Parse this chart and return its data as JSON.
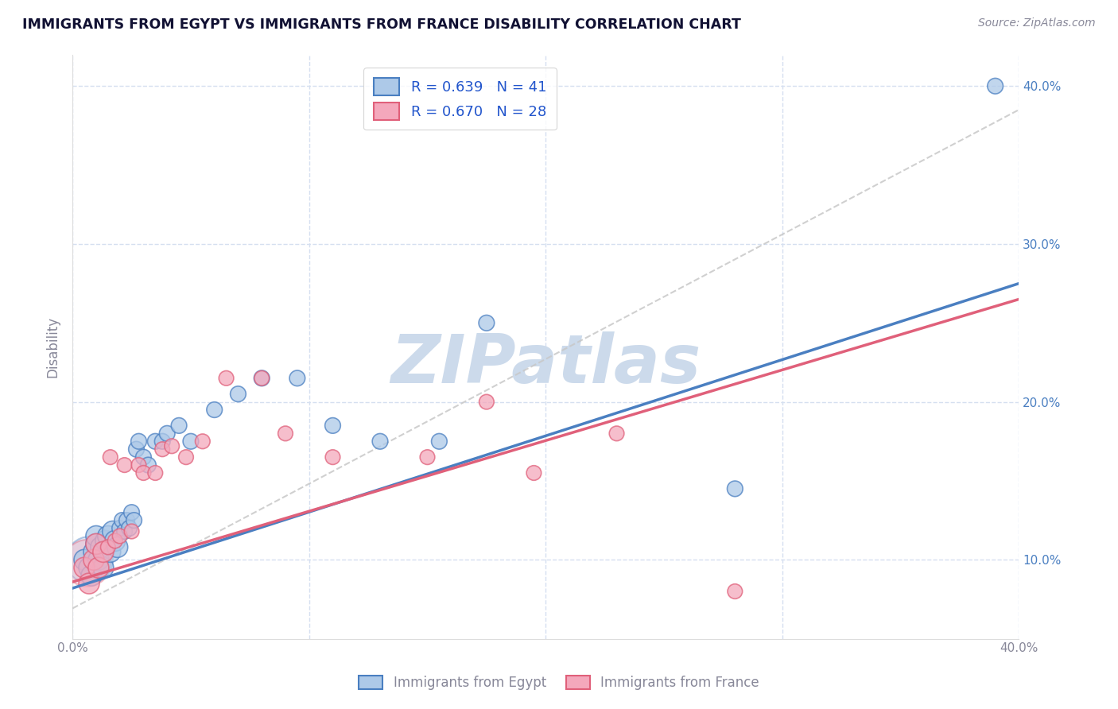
{
  "title": "IMMIGRANTS FROM EGYPT VS IMMIGRANTS FROM FRANCE DISABILITY CORRELATION CHART",
  "source": "Source: ZipAtlas.com",
  "ylabel": "Disability",
  "legend_egypt": "R = 0.639   N = 41",
  "legend_france": "R = 0.670   N = 28",
  "xlim": [
    0.0,
    0.4
  ],
  "ylim": [
    0.05,
    0.42
  ],
  "xticks": [
    0.0,
    0.1,
    0.2,
    0.3,
    0.4
  ],
  "yticks": [
    0.1,
    0.2,
    0.3,
    0.4
  ],
  "color_egypt": "#adc9e8",
  "color_france": "#f4a8bc",
  "color_egypt_line": "#4a7fc1",
  "color_france_line": "#e0607a",
  "color_dashed": "#c8c8c8",
  "watermark": "ZIPatlas",
  "watermark_color": "#ccdaeb",
  "egypt_x": [
    0.005,
    0.007,
    0.008,
    0.009,
    0.01,
    0.01,
    0.011,
    0.012,
    0.013,
    0.014,
    0.015,
    0.016,
    0.017,
    0.018,
    0.019,
    0.02,
    0.021,
    0.022,
    0.023,
    0.024,
    0.025,
    0.026,
    0.027,
    0.028,
    0.03,
    0.032,
    0.035,
    0.038,
    0.04,
    0.045,
    0.05,
    0.06,
    0.07,
    0.08,
    0.095,
    0.11,
    0.13,
    0.155,
    0.175,
    0.28,
    0.39
  ],
  "egypt_y": [
    0.1,
    0.095,
    0.09,
    0.105,
    0.11,
    0.115,
    0.1,
    0.108,
    0.095,
    0.112,
    0.115,
    0.105,
    0.118,
    0.112,
    0.108,
    0.12,
    0.125,
    0.118,
    0.125,
    0.12,
    0.13,
    0.125,
    0.17,
    0.175,
    0.165,
    0.16,
    0.175,
    0.175,
    0.18,
    0.185,
    0.175,
    0.195,
    0.205,
    0.215,
    0.215,
    0.185,
    0.175,
    0.175,
    0.25,
    0.145,
    0.4
  ],
  "france_x": [
    0.005,
    0.007,
    0.009,
    0.01,
    0.011,
    0.013,
    0.015,
    0.016,
    0.018,
    0.02,
    0.022,
    0.025,
    0.028,
    0.03,
    0.035,
    0.038,
    0.042,
    0.048,
    0.055,
    0.065,
    0.08,
    0.09,
    0.11,
    0.15,
    0.175,
    0.195,
    0.23,
    0.28
  ],
  "france_y": [
    0.095,
    0.085,
    0.1,
    0.11,
    0.095,
    0.105,
    0.108,
    0.165,
    0.112,
    0.115,
    0.16,
    0.118,
    0.16,
    0.155,
    0.155,
    0.17,
    0.172,
    0.165,
    0.175,
    0.215,
    0.215,
    0.18,
    0.165,
    0.165,
    0.2,
    0.155,
    0.18,
    0.08
  ],
  "egypt_line_x0": 0.0,
  "egypt_line_y0": 0.082,
  "egypt_line_x1": 0.4,
  "egypt_line_y1": 0.275,
  "france_line_x0": 0.0,
  "france_line_y0": 0.086,
  "france_line_x1": 0.4,
  "france_line_y1": 0.265,
  "dashed_line_x0": 0.02,
  "dashed_line_y0": 0.085,
  "dashed_line_x1": 0.4,
  "dashed_line_y1": 0.385,
  "background_color": "#ffffff",
  "grid_color": "#d5dff0",
  "title_color": "#111133",
  "axis_color": "#888899"
}
